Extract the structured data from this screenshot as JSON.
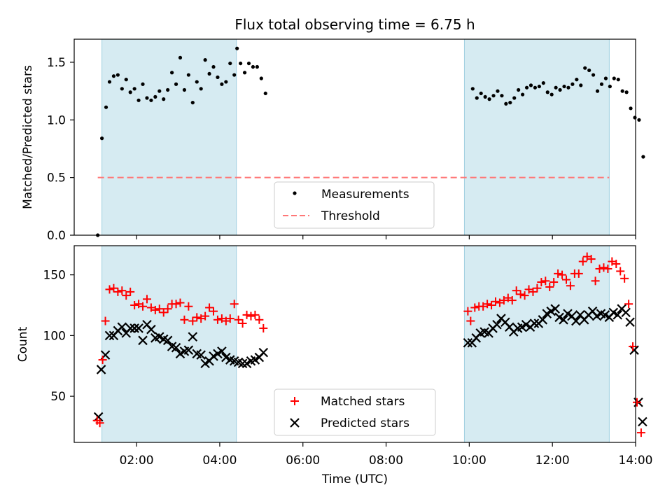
{
  "title": "Flux total observing time = 6.75 h",
  "chart_data": [
    {
      "type": "scatter",
      "ylabel": "Matched/Predicted stars",
      "ylim": [
        0,
        1.7
      ],
      "xlim": [
        "00:30",
        "14:00"
      ],
      "yticks": [
        "0.0",
        "0.5",
        "1.0",
        "1.5"
      ],
      "shaded_intervals": [
        [
          "01:10",
          "04:24"
        ],
        [
          "09:53",
          "13:22"
        ]
      ],
      "legend_position": "lower-center",
      "series": [
        {
          "name": "Measurements",
          "marker": "dot",
          "color": "#000000",
          "points": [
            [
              "01:04",
              0.0
            ],
            [
              "01:10",
              0.84
            ],
            [
              "01:16",
              1.11
            ],
            [
              "01:21",
              1.33
            ],
            [
              "01:27",
              1.38
            ],
            [
              "01:33",
              1.39
            ],
            [
              "01:39",
              1.27
            ],
            [
              "01:45",
              1.35
            ],
            [
              "01:51",
              1.24
            ],
            [
              "01:57",
              1.27
            ],
            [
              "02:03",
              1.17
            ],
            [
              "02:09",
              1.31
            ],
            [
              "02:15",
              1.19
            ],
            [
              "02:21",
              1.17
            ],
            [
              "02:27",
              1.2
            ],
            [
              "02:33",
              1.25
            ],
            [
              "02:39",
              1.18
            ],
            [
              "02:45",
              1.26
            ],
            [
              "02:51",
              1.41
            ],
            [
              "02:57",
              1.31
            ],
            [
              "03:03",
              1.54
            ],
            [
              "03:09",
              1.26
            ],
            [
              "03:15",
              1.39
            ],
            [
              "03:21",
              1.15
            ],
            [
              "03:27",
              1.33
            ],
            [
              "03:33",
              1.27
            ],
            [
              "03:39",
              1.52
            ],
            [
              "03:45",
              1.4
            ],
            [
              "03:51",
              1.46
            ],
            [
              "03:57",
              1.37
            ],
            [
              "04:03",
              1.31
            ],
            [
              "04:09",
              1.33
            ],
            [
              "04:15",
              1.49
            ],
            [
              "04:21",
              1.39
            ],
            [
              "04:25",
              1.62
            ],
            [
              "04:30",
              1.49
            ],
            [
              "04:36",
              1.41
            ],
            [
              "04:42",
              1.49
            ],
            [
              "04:48",
              1.46
            ],
            [
              "04:54",
              1.46
            ],
            [
              "05:00",
              1.36
            ],
            [
              "05:06",
              1.23
            ],
            [
              "10:05",
              1.27
            ],
            [
              "10:11",
              1.19
            ],
            [
              "10:17",
              1.23
            ],
            [
              "10:23",
              1.2
            ],
            [
              "10:29",
              1.18
            ],
            [
              "10:35",
              1.21
            ],
            [
              "10:41",
              1.25
            ],
            [
              "10:47",
              1.21
            ],
            [
              "10:53",
              1.14
            ],
            [
              "10:59",
              1.15
            ],
            [
              "11:05",
              1.19
            ],
            [
              "11:11",
              1.26
            ],
            [
              "11:17",
              1.22
            ],
            [
              "11:23",
              1.28
            ],
            [
              "11:29",
              1.3
            ],
            [
              "11:35",
              1.28
            ],
            [
              "11:41",
              1.29
            ],
            [
              "11:47",
              1.32
            ],
            [
              "11:53",
              1.24
            ],
            [
              "11:59",
              1.22
            ],
            [
              "12:05",
              1.28
            ],
            [
              "12:11",
              1.26
            ],
            [
              "12:17",
              1.29
            ],
            [
              "12:23",
              1.28
            ],
            [
              "12:29",
              1.31
            ],
            [
              "12:35",
              1.35
            ],
            [
              "12:41",
              1.3
            ],
            [
              "12:47",
              1.45
            ],
            [
              "12:53",
              1.43
            ],
            [
              "12:59",
              1.39
            ],
            [
              "13:05",
              1.25
            ],
            [
              "13:11",
              1.31
            ],
            [
              "13:17",
              1.36
            ],
            [
              "13:23",
              1.29
            ],
            [
              "13:29",
              1.36
            ],
            [
              "13:35",
              1.35
            ],
            [
              "13:41",
              1.25
            ],
            [
              "13:47",
              1.24
            ],
            [
              "13:53",
              1.1
            ],
            [
              "13:59",
              1.02
            ],
            [
              "14:05",
              1.0
            ],
            [
              "14:11",
              0.68
            ]
          ]
        },
        {
          "name": "Threshold",
          "type": "hline",
          "style": "dashed",
          "color": "#ff7777",
          "y": 0.5,
          "x_range": [
            "01:04",
            "13:22"
          ]
        }
      ]
    },
    {
      "type": "scatter",
      "ylabel": "Count",
      "xlabel": "Time (UTC)",
      "ylim": [
        12,
        174
      ],
      "xlim": [
        "00:30",
        "14:00"
      ],
      "yticks": [
        "50",
        "100",
        "150"
      ],
      "xticks": [
        "02:00",
        "04:00",
        "06:00",
        "08:00",
        "10:00",
        "12:00",
        "14:00"
      ],
      "shaded_intervals": [
        [
          "01:10",
          "04:24"
        ],
        [
          "09:53",
          "13:22"
        ]
      ],
      "legend_position": "lower-center",
      "series": [
        {
          "name": "Matched stars",
          "marker": "plus",
          "color": "#ff0000",
          "points": [
            [
              "01:03",
              30
            ],
            [
              "01:07",
              28
            ],
            [
              "01:11",
              80
            ],
            [
              "01:15",
              112
            ],
            [
              "01:21",
              138
            ],
            [
              "01:27",
              139
            ],
            [
              "01:33",
              136
            ],
            [
              "01:39",
              137
            ],
            [
              "01:45",
              133
            ],
            [
              "01:51",
              136
            ],
            [
              "01:57",
              125
            ],
            [
              "02:03",
              126
            ],
            [
              "02:09",
              124
            ],
            [
              "02:15",
              130
            ],
            [
              "02:21",
              123
            ],
            [
              "02:27",
              121
            ],
            [
              "02:33",
              122
            ],
            [
              "02:39",
              119
            ],
            [
              "02:45",
              122
            ],
            [
              "02:51",
              126
            ],
            [
              "02:57",
              126
            ],
            [
              "03:03",
              127
            ],
            [
              "03:09",
              113
            ],
            [
              "03:15",
              124
            ],
            [
              "03:21",
              112
            ],
            [
              "03:27",
              115
            ],
            [
              "03:33",
              114
            ],
            [
              "03:39",
              116
            ],
            [
              "03:45",
              123
            ],
            [
              "03:51",
              120
            ],
            [
              "03:57",
              113
            ],
            [
              "04:03",
              114
            ],
            [
              "04:09",
              112
            ],
            [
              "04:15",
              114
            ],
            [
              "04:21",
              126
            ],
            [
              "04:27",
              113
            ],
            [
              "04:33",
              110
            ],
            [
              "04:39",
              117
            ],
            [
              "04:45",
              116
            ],
            [
              "04:51",
              117
            ],
            [
              "04:57",
              113
            ],
            [
              "05:03",
              106
            ],
            [
              "09:58",
              120
            ],
            [
              "10:02",
              112
            ],
            [
              "10:08",
              123
            ],
            [
              "10:14",
              124
            ],
            [
              "10:20",
              124
            ],
            [
              "10:26",
              126
            ],
            [
              "10:32",
              125
            ],
            [
              "10:38",
              128
            ],
            [
              "10:44",
              127
            ],
            [
              "10:50",
              129
            ],
            [
              "10:56",
              131
            ],
            [
              "11:02",
              129
            ],
            [
              "11:08",
              137
            ],
            [
              "11:14",
              134
            ],
            [
              "11:20",
              133
            ],
            [
              "11:26",
              138
            ],
            [
              "11:32",
              136
            ],
            [
              "11:38",
              139
            ],
            [
              "11:44",
              144
            ],
            [
              "11:50",
              145
            ],
            [
              "11:56",
              140
            ],
            [
              "12:02",
              144
            ],
            [
              "12:08",
              151
            ],
            [
              "12:14",
              150
            ],
            [
              "12:20",
              146
            ],
            [
              "12:26",
              141
            ],
            [
              "12:32",
              151
            ],
            [
              "12:38",
              151
            ],
            [
              "12:44",
              161
            ],
            [
              "12:50",
              165
            ],
            [
              "12:56",
              163
            ],
            [
              "13:02",
              145
            ],
            [
              "13:08",
              155
            ],
            [
              "13:14",
              156
            ],
            [
              "13:20",
              155
            ],
            [
              "13:26",
              161
            ],
            [
              "13:32",
              159
            ],
            [
              "13:38",
              153
            ],
            [
              "13:44",
              147
            ],
            [
              "13:50",
              126
            ],
            [
              "13:56",
              91
            ],
            [
              "14:02",
              45
            ],
            [
              "14:08",
              20
            ]
          ]
        },
        {
          "name": "Predicted stars",
          "marker": "x",
          "color": "#000000",
          "points": [
            [
              "01:05",
              33
            ],
            [
              "01:09",
              72
            ],
            [
              "01:15",
              84
            ],
            [
              "01:21",
              100
            ],
            [
              "01:27",
              100
            ],
            [
              "01:33",
              104
            ],
            [
              "01:39",
              107
            ],
            [
              "01:45",
              102
            ],
            [
              "01:51",
              106
            ],
            [
              "01:57",
              106
            ],
            [
              "02:03",
              106
            ],
            [
              "02:09",
              96
            ],
            [
              "02:15",
              109
            ],
            [
              "02:21",
              105
            ],
            [
              "02:27",
              98
            ],
            [
              "02:33",
              99
            ],
            [
              "02:39",
              97
            ],
            [
              "02:45",
              96
            ],
            [
              "02:51",
              91
            ],
            [
              "02:57",
              90
            ],
            [
              "03:03",
              85
            ],
            [
              "03:09",
              87
            ],
            [
              "03:15",
              88
            ],
            [
              "03:21",
              99
            ],
            [
              "03:27",
              85
            ],
            [
              "03:33",
              84
            ],
            [
              "03:39",
              77
            ],
            [
              "03:45",
              79
            ],
            [
              "03:51",
              83
            ],
            [
              "03:57",
              85
            ],
            [
              "04:03",
              87
            ],
            [
              "04:09",
              82
            ],
            [
              "04:15",
              80
            ],
            [
              "04:21",
              79
            ],
            [
              "04:27",
              78
            ],
            [
              "04:33",
              77
            ],
            [
              "04:39",
              77
            ],
            [
              "04:45",
              79
            ],
            [
              "04:51",
              80
            ],
            [
              "04:57",
              82
            ],
            [
              "05:03",
              86
            ],
            [
              "09:58",
              94
            ],
            [
              "10:04",
              94
            ],
            [
              "10:10",
              98
            ],
            [
              "10:16",
              102
            ],
            [
              "10:22",
              103
            ],
            [
              "10:28",
              102
            ],
            [
              "10:34",
              106
            ],
            [
              "10:40",
              109
            ],
            [
              "10:46",
              114
            ],
            [
              "10:52",
              111
            ],
            [
              "10:58",
              107
            ],
            [
              "11:04",
              103
            ],
            [
              "11:10",
              106
            ],
            [
              "11:16",
              107
            ],
            [
              "11:22",
              109
            ],
            [
              "11:28",
              107
            ],
            [
              "11:34",
              110
            ],
            [
              "11:40",
              110
            ],
            [
              "11:46",
              113
            ],
            [
              "11:52",
              118
            ],
            [
              "11:58",
              120
            ],
            [
              "12:04",
              122
            ],
            [
              "12:10",
              115
            ],
            [
              "12:16",
              113
            ],
            [
              "12:22",
              118
            ],
            [
              "12:28",
              116
            ],
            [
              "12:34",
              112
            ],
            [
              "12:40",
              117
            ],
            [
              "12:46",
              113
            ],
            [
              "12:52",
              117
            ],
            [
              "12:58",
              120
            ],
            [
              "13:04",
              116
            ],
            [
              "13:10",
              118
            ],
            [
              "13:16",
              117
            ],
            [
              "13:22",
              115
            ],
            [
              "13:28",
              119
            ],
            [
              "13:34",
              117
            ],
            [
              "13:40",
              122
            ],
            [
              "13:46",
              119
            ],
            [
              "13:52",
              111
            ],
            [
              "13:58",
              88
            ],
            [
              "14:04",
              45
            ],
            [
              "14:10",
              29
            ]
          ]
        }
      ]
    }
  ]
}
